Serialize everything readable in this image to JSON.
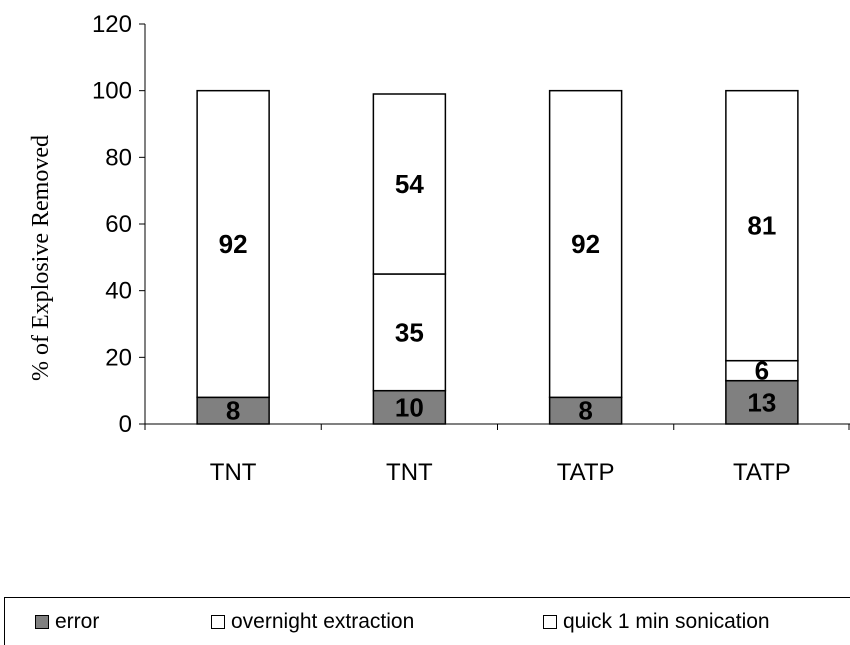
{
  "colors": {
    "error": "#808080",
    "overnight": "#ffffff",
    "quick": "#ffffff",
    "stroke": "#000000"
  },
  "chart_data": {
    "type": "bar",
    "stacked": true,
    "categories": [
      "TNT",
      "TNT",
      "TATP",
      "TATP"
    ],
    "series": [
      {
        "name": "error",
        "values": [
          8,
          10,
          8,
          13
        ],
        "labels": [
          "8",
          "10",
          "8",
          "13"
        ]
      },
      {
        "name": "overnight extraction",
        "values": [
          0,
          35,
          0,
          6
        ],
        "labels": [
          "",
          "35",
          "",
          "6"
        ]
      },
      {
        "name": "quick 1 min sonication",
        "values": [
          92,
          54,
          92,
          81
        ],
        "labels": [
          "92",
          "54",
          "92",
          "81"
        ]
      }
    ],
    "ylabel": "% of Explosive Removed",
    "xlabel": "",
    "ylim": [
      0,
      120
    ],
    "yticks": [
      "0",
      "20",
      "40",
      "60",
      "80",
      "100",
      "120"
    ],
    "legend_position": "bottom",
    "grid": false
  }
}
